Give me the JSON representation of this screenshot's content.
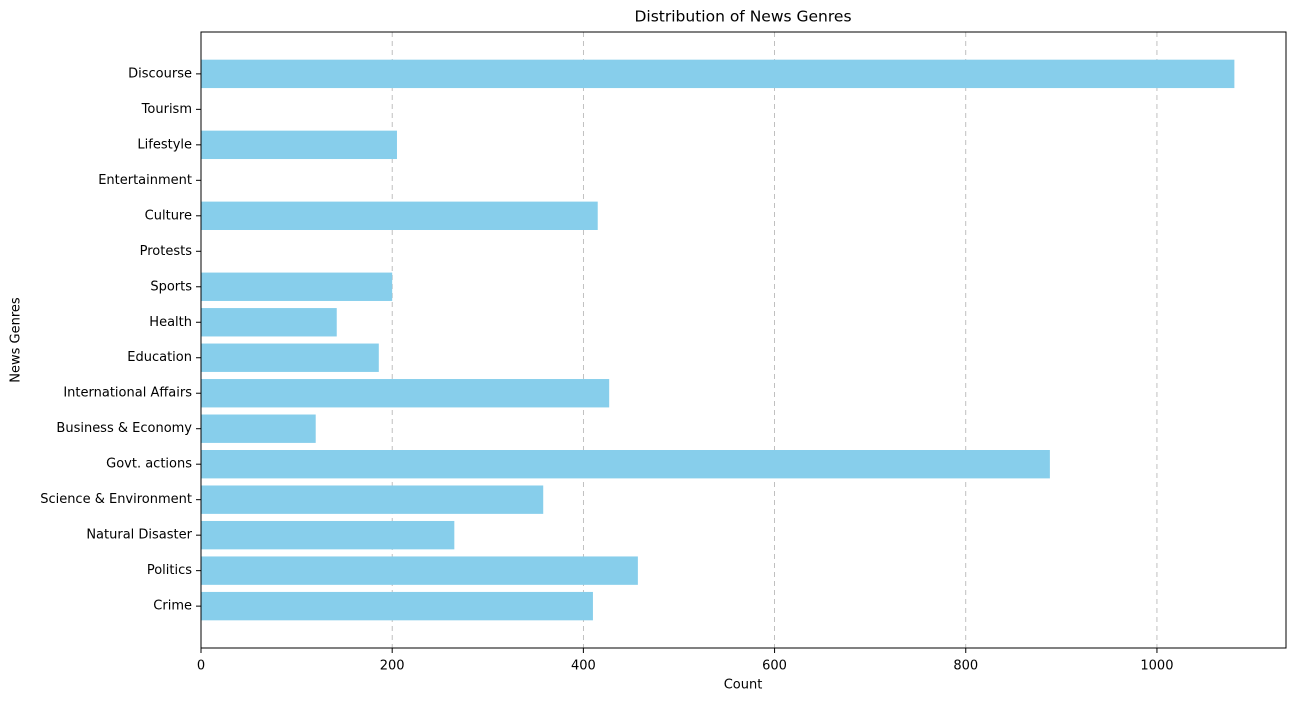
{
  "chart_data": {
    "type": "barh",
    "title": "Distribution of News Genres",
    "x_label": "Count",
    "y_label": "News Genres",
    "categories": [
      "Crime",
      "Politics",
      "Natural Disaster",
      "Science & Environment",
      "Govt. actions",
      "Business & Economy",
      "International Affairs",
      "Education",
      "Health",
      "Sports",
      "Protests",
      "Culture",
      "Entertainment",
      "Lifestyle",
      "Tourism",
      "Discourse"
    ],
    "values": [
      410,
      457,
      265,
      358,
      888,
      120,
      427,
      186,
      142,
      200,
      0,
      415,
      0,
      205,
      0,
      1081
    ],
    "color": "#87ceeb",
    "xlim": [
      0,
      1135
    ],
    "xticks": [
      0,
      200,
      400,
      600,
      800,
      1000
    ],
    "grid": true
  }
}
